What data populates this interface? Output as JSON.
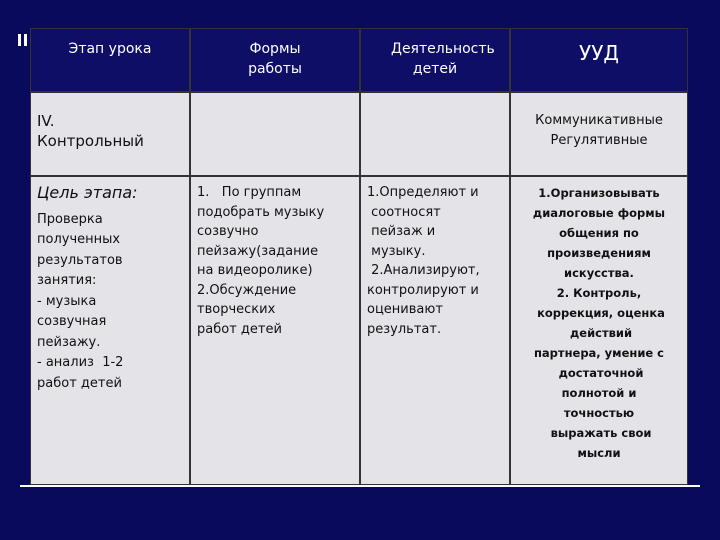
{
  "table": {
    "header": [
      "Этап урока",
      "Формы   работы",
      "Деятельность детей",
      "УУД"
    ],
    "row1": {
      "stage": [
        "IV.",
        "Контрольный"
      ],
      "uud": [
        "Коммуникативные",
        "Регулятивные"
      ]
    },
    "row2": [
      [
        "Цель этапа:",
        "Проверка",
        "полученных",
        "результатов",
        "занятия:",
        "- музыка",
        "созвучная",
        "пейзажу.",
        "- анализ  1-2",
        "работ детей"
      ],
      [
        "1.   По группам",
        "подобрать музыку",
        "созвучно",
        "пейзажу(задание",
        "на видеоролике)",
        "2.Обсуждение",
        "творческих",
        "работ детей"
      ],
      [
        "1.Определяют и",
        " соотносят",
        " пейзаж и",
        " музыку.",
        " 2.Анализируют,",
        "контролируют и",
        "оценивают",
        "результат."
      ],
      [
        "1.Организовывать",
        "диалоговые формы",
        "общения по",
        "произведениям",
        "искусства.",
        "2. Контроль,",
        " коррекция, оценка",
        " действий",
        "партнера, умение с",
        " достаточной",
        "полнотой и",
        "точностью",
        " выражать свои",
        "мысли"
      ]
    ]
  }
}
